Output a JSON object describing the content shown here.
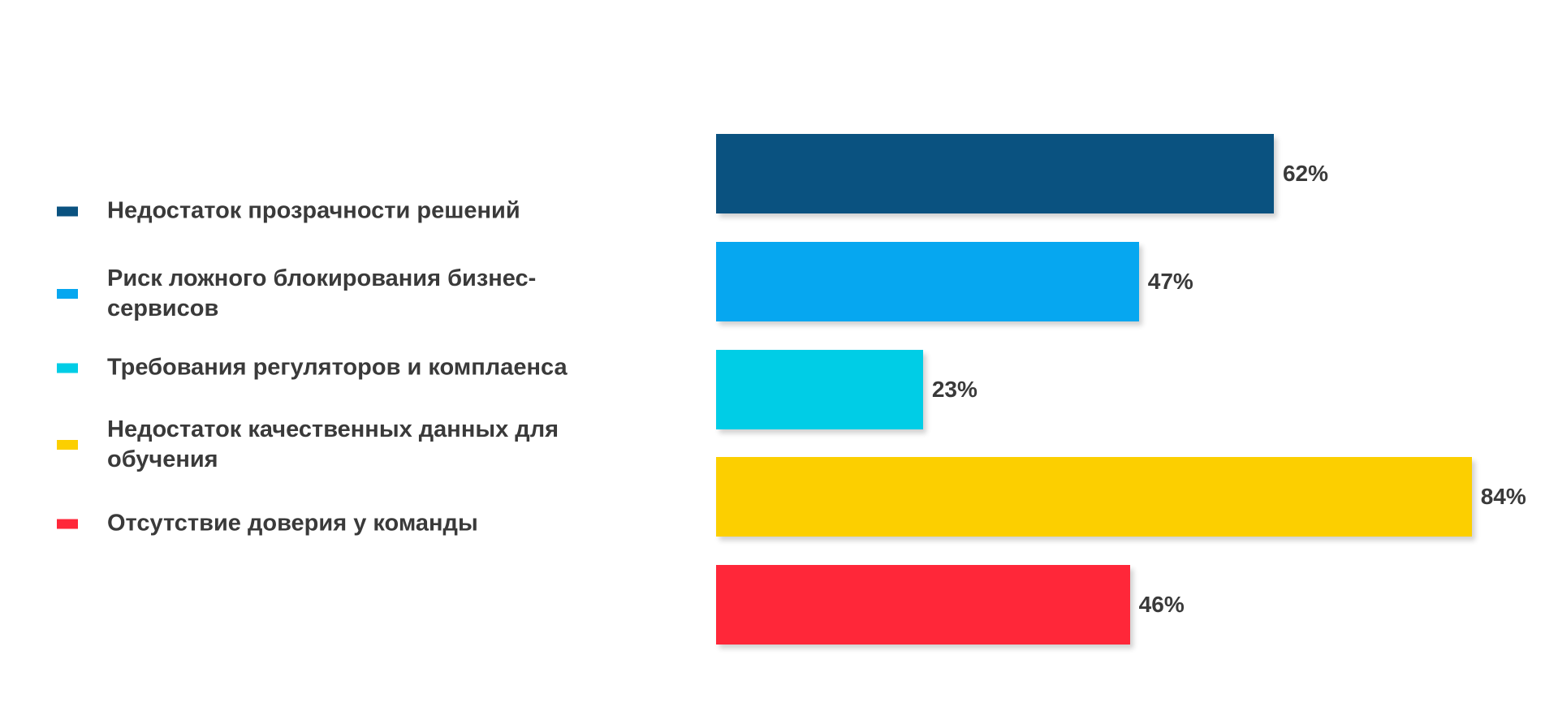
{
  "chart_data": {
    "type": "bar",
    "orientation": "horizontal",
    "categories": [
      "Недостаток прозрачности решений",
      "Риск ложного блокирования бизнес-сервисов",
      "Требования регуляторов и комплаенса",
      "Недостаток качественных данных для обучения",
      "Отсутствие доверия у команды"
    ],
    "values": [
      62,
      47,
      23,
      84,
      46
    ],
    "value_labels": [
      "62%",
      "47%",
      "23%",
      "84%",
      "46%"
    ],
    "colors": [
      "#0a5280",
      "#06a7f0",
      "#00cde6",
      "#fccf00",
      "#ff2739"
    ]
  }
}
